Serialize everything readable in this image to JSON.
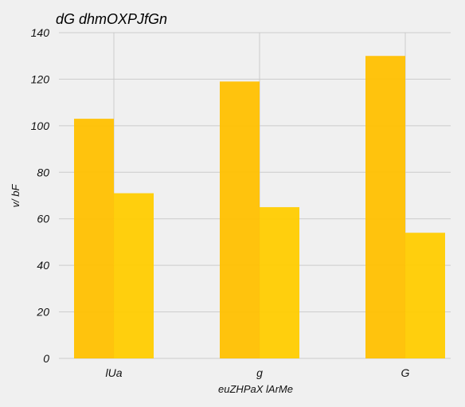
{
  "chart_data": {
    "type": "bar",
    "title": "dG dhmOXPJfGn",
    "xlabel": "euZHPaX lArMe",
    "ylabel": "v/ bF",
    "categories": [
      "lUa",
      "g",
      "G"
    ],
    "series": [
      {
        "values": [
          103,
          119,
          130
        ],
        "color": "#ffc000"
      },
      {
        "values": [
          71,
          65,
          54
        ],
        "color": "#ffcc00"
      }
    ],
    "ylim": [
      0,
      140
    ],
    "yticks": [
      0,
      20,
      40,
      60,
      80,
      100,
      120,
      140
    ],
    "grid": true
  }
}
